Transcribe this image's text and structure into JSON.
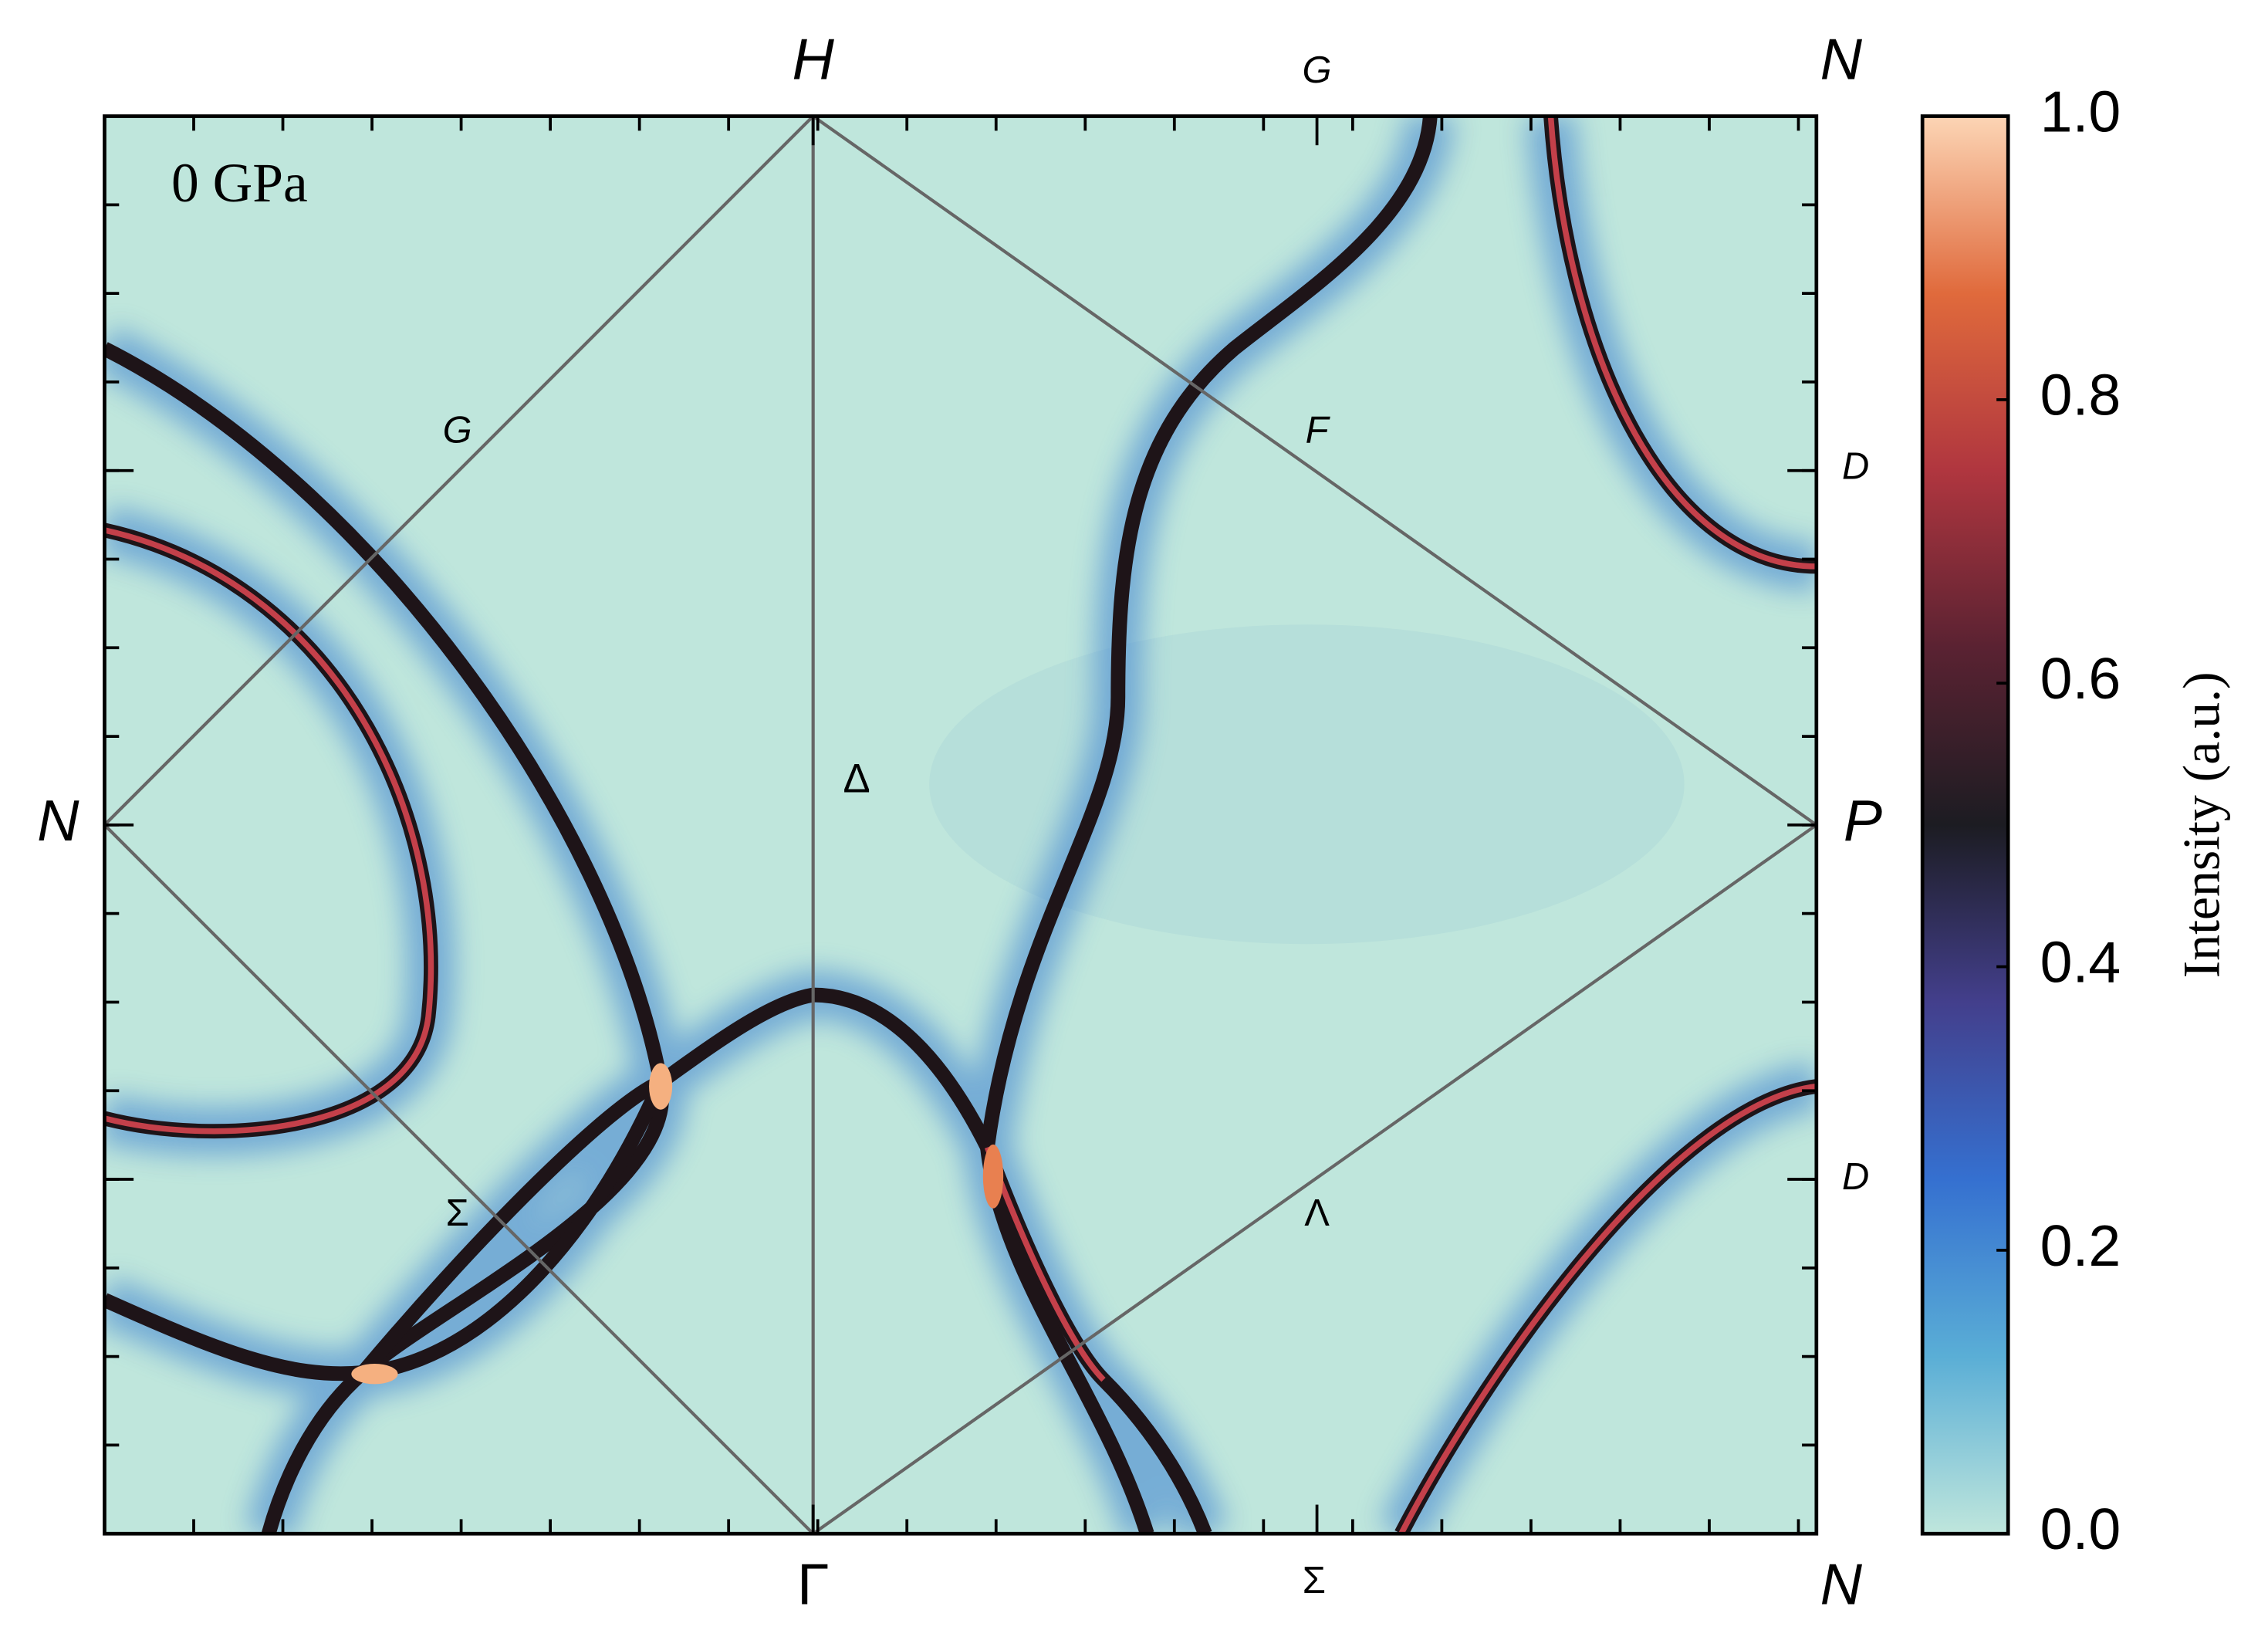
{
  "chart_data": {
    "type": "heatmap",
    "annotation": "0 GPa",
    "symmetry_labels": [
      "H",
      "G",
      "N",
      "N",
      "P",
      "Γ",
      "Σ",
      "N",
      "Δ",
      "G",
      "F",
      "D",
      "D",
      "Σ",
      "Λ"
    ],
    "colorbar": {
      "label": "Intensity (a.u.)",
      "lim": [
        0,
        1
      ],
      "ticks": [
        {
          "value": 0,
          "label": "0.0"
        },
        {
          "value": 0.2,
          "label": "0.2"
        },
        {
          "value": 0.4,
          "label": "0.4"
        },
        {
          "value": 0.6,
          "label": "0.6"
        },
        {
          "value": 0.8,
          "label": "0.8"
        },
        {
          "value": 1,
          "label": "1.0"
        }
      ],
      "colors": [
        "#bfe6dc",
        "#5aaed6",
        "#3570d0",
        "#433f8c",
        "#1c1c22",
        "#5a2232",
        "#b0363f",
        "#e06a3c",
        "#fcd5b5"
      ]
    }
  }
}
